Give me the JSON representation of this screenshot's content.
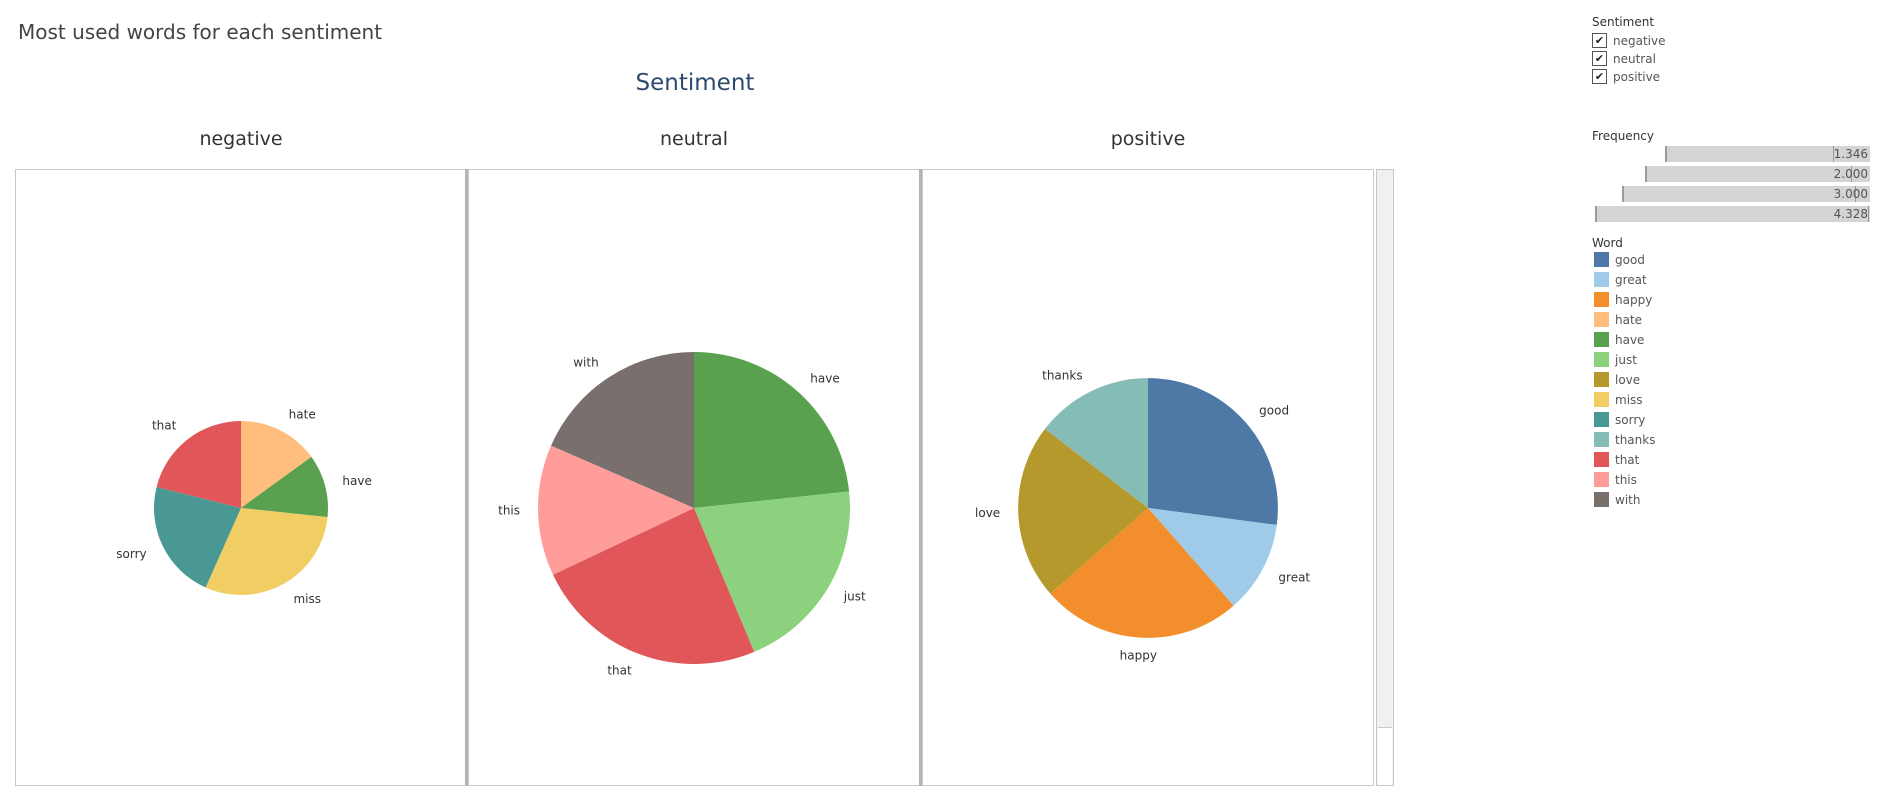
{
  "title": "Most used words for each sentiment",
  "column_header": "Sentiment",
  "panels": [
    "negative",
    "neutral",
    "positive"
  ],
  "legend": {
    "sentiment_title": "Sentiment",
    "sentiment_items": [
      {
        "label": "negative",
        "checked": true
      },
      {
        "label": "neutral",
        "checked": true
      },
      {
        "label": "positive",
        "checked": true
      }
    ],
    "frequency_title": "Frequency",
    "frequency_values": [
      "1.346",
      "2.000",
      "3.000",
      "4.328"
    ],
    "word_title": "Word",
    "words": [
      {
        "label": "good",
        "color": "#4e79a7"
      },
      {
        "label": "great",
        "color": "#a0cbe8"
      },
      {
        "label": "happy",
        "color": "#f28e2b"
      },
      {
        "label": "hate",
        "color": "#ffbe7d"
      },
      {
        "label": "have",
        "color": "#59a14f"
      },
      {
        "label": "just",
        "color": "#8cd17d"
      },
      {
        "label": "love",
        "color": "#b6992d"
      },
      {
        "label": "miss",
        "color": "#f1ce63"
      },
      {
        "label": "sorry",
        "color": "#499894"
      },
      {
        "label": "thanks",
        "color": "#86bcb6"
      },
      {
        "label": "that",
        "color": "#e15759"
      },
      {
        "label": "this",
        "color": "#ff9d9a"
      },
      {
        "label": "with",
        "color": "#79706e"
      }
    ]
  },
  "chart_data": [
    {
      "type": "pie",
      "title": "negative",
      "size_value": 1.346,
      "slices": [
        {
          "label": "hate",
          "value": 13.5
        },
        {
          "label": "have",
          "value": 10.5
        },
        {
          "label": "miss",
          "value": 27
        },
        {
          "label": "sorry",
          "value": 20
        },
        {
          "label": "that",
          "value": 19
        }
      ]
    },
    {
      "type": "pie",
      "title": "neutral",
      "size_value": 4.328,
      "slices": [
        {
          "label": "have",
          "value": 24
        },
        {
          "label": "just",
          "value": 21
        },
        {
          "label": "that",
          "value": 25
        },
        {
          "label": "this",
          "value": 14
        },
        {
          "label": "with",
          "value": 19
        }
      ]
    },
    {
      "type": "pie",
      "title": "positive",
      "size_value": 3.0,
      "slices": [
        {
          "label": "good",
          "value": 26
        },
        {
          "label": "great",
          "value": 11
        },
        {
          "label": "happy",
          "value": 24
        },
        {
          "label": "love",
          "value": 21
        },
        {
          "label": "thanks",
          "value": 14
        }
      ]
    }
  ]
}
